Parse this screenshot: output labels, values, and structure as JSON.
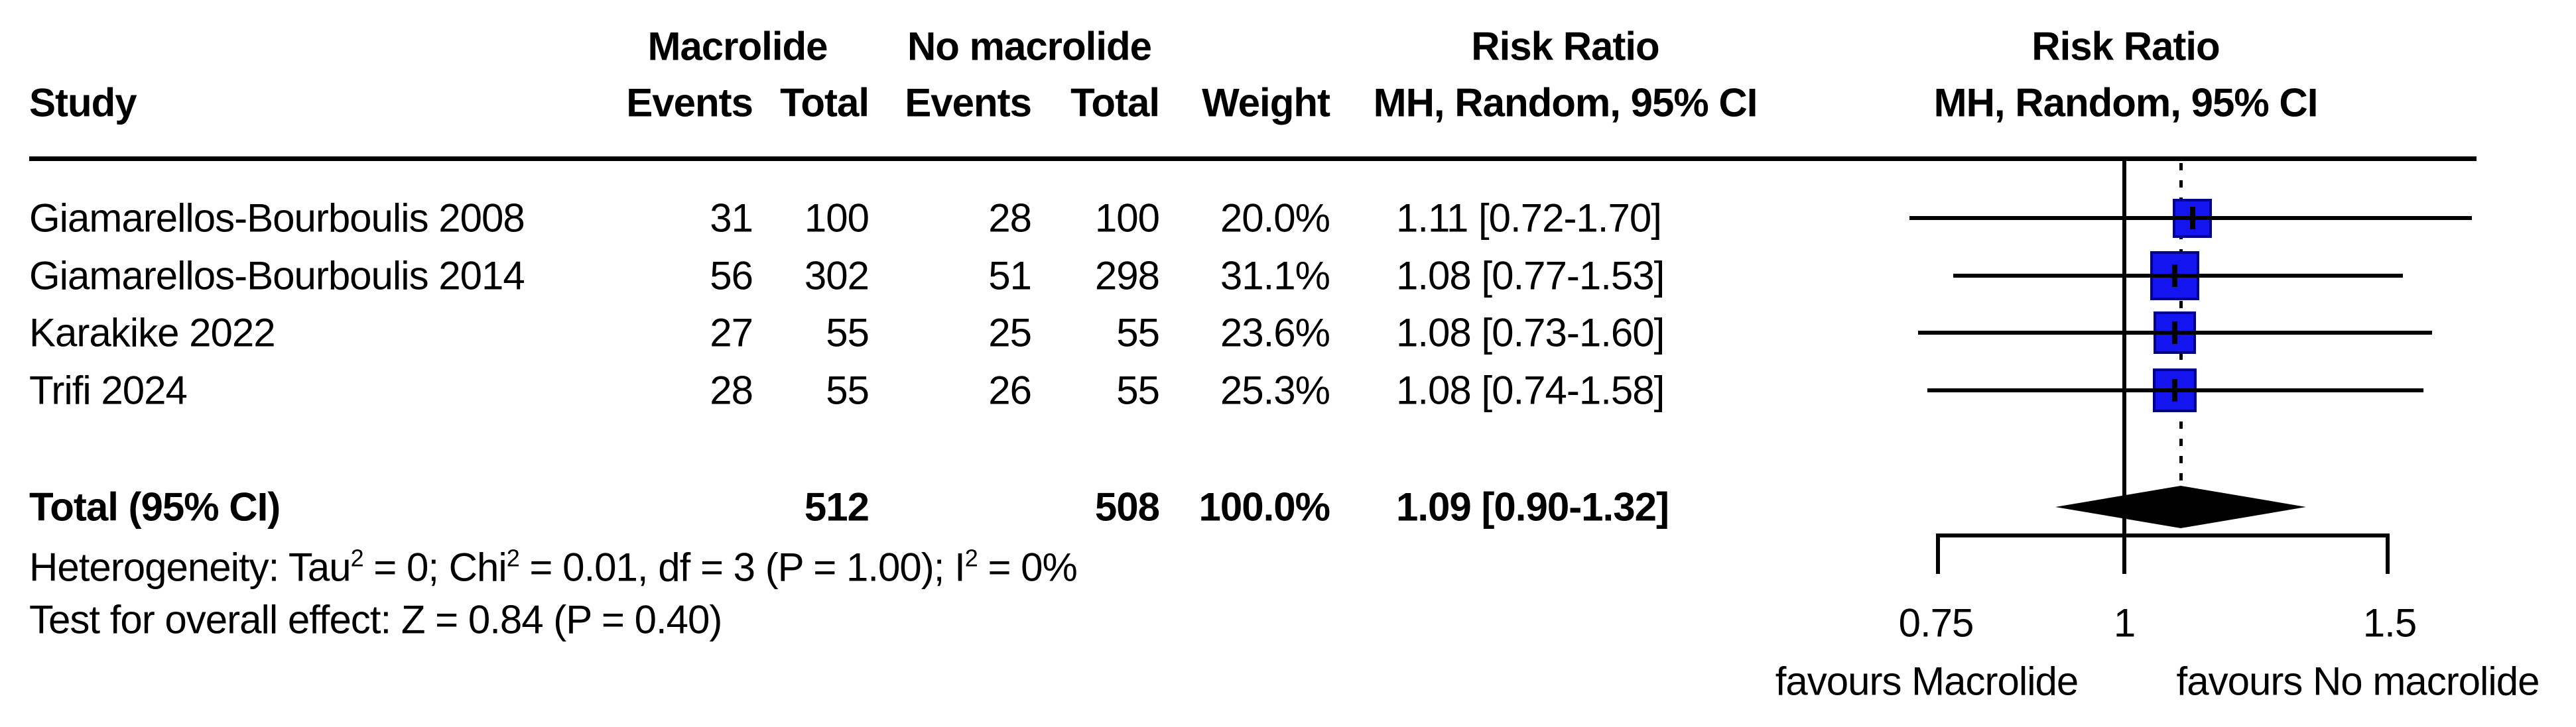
{
  "header": {
    "group_macrolide": "Macrolide",
    "group_no_macrolide": "No macrolide",
    "risk_ratio_table": "Risk Ratio",
    "risk_ratio_plot": "Risk Ratio",
    "study": "Study",
    "events_macrolide": "Events",
    "total_macrolide": "Total",
    "events_no_macrolide": "Events",
    "total_no_macrolide": "Total",
    "weight": "Weight",
    "mh_random_table": "MH, Random, 95% CI",
    "mh_random_plot": "MH, Random, 95% CI"
  },
  "rows": [
    {
      "study": "Giamarellos-Bourboulis 2008",
      "events_macrolide": "31",
      "total_macrolide": "100",
      "events_no_macrolide": "28",
      "total_no_macrolide": "100",
      "weight": "20.0%",
      "rr_ci": "1.11 [0.72-1.70]"
    },
    {
      "study": "Giamarellos-Bourboulis 2014",
      "events_macrolide": "56",
      "total_macrolide": "302",
      "events_no_macrolide": "51",
      "total_no_macrolide": "298",
      "weight": "31.1%",
      "rr_ci": "1.08 [0.77-1.53]"
    },
    {
      "study": "Karakike 2022",
      "events_macrolide": "27",
      "total_macrolide": "55",
      "events_no_macrolide": "25",
      "total_no_macrolide": "55",
      "weight": "23.6%",
      "rr_ci": "1.08 [0.73-1.60]"
    },
    {
      "study": "Trifi 2024",
      "events_macrolide": "28",
      "total_macrolide": "55",
      "events_no_macrolide": "26",
      "total_no_macrolide": "55",
      "weight": "25.3%",
      "rr_ci": "1.08 [0.74-1.58]"
    }
  ],
  "total_row": {
    "label": "Total (95% CI)",
    "total_macrolide": "512",
    "total_no_macrolide": "508",
    "weight": "100.0%",
    "rr_ci": "1.09 [0.90-1.32]"
  },
  "footer": {
    "heterogeneity": {
      "prefix": "Heterogeneity: Tau",
      "sup1": "2",
      "mid1": " = 0; Chi",
      "sup2": "2",
      "mid2": " = 0.01, df = 3 (P = 1.00); I",
      "sup3": "2",
      "suffix": " = 0%"
    },
    "overall_effect": "Test for overall effect: Z = 0.84 (P = 0.40)"
  },
  "axis": {
    "tick_075": "0.75",
    "tick_1": "1",
    "tick_15": "1.5",
    "favours_left": "favours Macrolide",
    "favours_right": "favours No macrolide"
  },
  "colors": {
    "square_fill": "#1414f0",
    "square_border": "#00008b",
    "line": "#000000"
  },
  "chart_data": {
    "type": "forest",
    "effect_measure": "Risk Ratio (MH, Random, 95% CI)",
    "x_scale": "log",
    "axis_ticks": [
      0.75,
      1,
      1.5
    ],
    "null_line": 1,
    "studies": [
      {
        "name": "Giamarellos-Bourboulis 2008",
        "rr": 1.11,
        "ci_low": 0.72,
        "ci_high": 1.7,
        "weight_pct": 20.0,
        "events_macrolide": 31,
        "total_macrolide": 100,
        "events_no_macrolide": 28,
        "total_no_macrolide": 100
      },
      {
        "name": "Giamarellos-Bourboulis 2014",
        "rr": 1.08,
        "ci_low": 0.77,
        "ci_high": 1.53,
        "weight_pct": 31.1,
        "events_macrolide": 56,
        "total_macrolide": 302,
        "events_no_macrolide": 51,
        "total_no_macrolide": 298
      },
      {
        "name": "Karakike 2022",
        "rr": 1.08,
        "ci_low": 0.73,
        "ci_high": 1.6,
        "weight_pct": 23.6,
        "events_macrolide": 27,
        "total_macrolide": 55,
        "events_no_macrolide": 25,
        "total_no_macrolide": 55
      },
      {
        "name": "Trifi 2024",
        "rr": 1.08,
        "ci_low": 0.74,
        "ci_high": 1.58,
        "weight_pct": 25.3,
        "events_macrolide": 28,
        "total_macrolide": 55,
        "events_no_macrolide": 26,
        "total_no_macrolide": 55
      }
    ],
    "pooled": {
      "label": "Total (95% CI)",
      "rr": 1.09,
      "ci_low": 0.9,
      "ci_high": 1.32,
      "weight_pct": 100.0,
      "total_macrolide": 512,
      "total_no_macrolide": 508
    },
    "heterogeneity": {
      "tau2": 0,
      "chi2": 0.01,
      "df": 3,
      "p": 1.0,
      "i2_pct": 0
    },
    "overall_effect": {
      "z": 0.84,
      "p": 0.4
    },
    "xlabel_left": "favours Macrolide",
    "xlabel_right": "favours No macrolide"
  }
}
